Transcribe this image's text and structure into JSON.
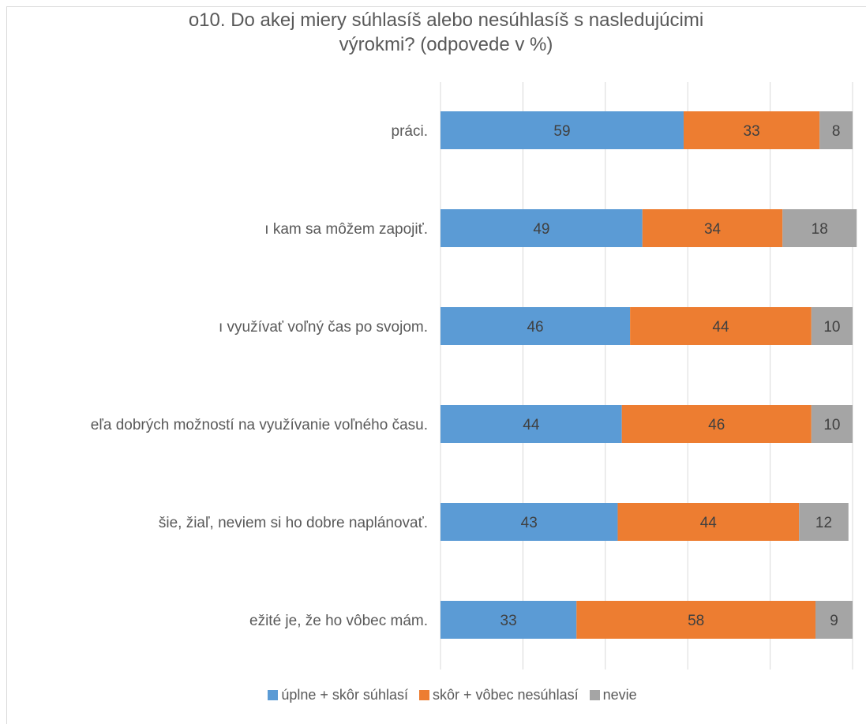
{
  "chart_data": {
    "type": "bar",
    "orientation": "horizontal",
    "stacked": true,
    "title_line1": "o10. Do akej miery súhlasíš alebo nesúhlasíš s nasledujúcimi",
    "title_line2": "výrokmi? (odpovede v %)",
    "categories": [
      "práci.",
      "ı kam sa môžem zapojiť.",
      "ı využívať voľný čas po svojom.",
      "eľa dobrých možností na využívanie voľného času.",
      "šie, žiaľ, neviem si ho dobre naplánovať.",
      "ežité je, že ho vôbec mám."
    ],
    "series": [
      {
        "name": "úplne + skôr súhlasí",
        "color": "#5b9bd5",
        "values": [
          59,
          49,
          46,
          44,
          43,
          33
        ]
      },
      {
        "name": "skôr + vôbec nesúhlasí",
        "color": "#ed7d31",
        "values": [
          33,
          34,
          44,
          46,
          44,
          58
        ]
      },
      {
        "name": "nevie",
        "color": "#a5a5a5",
        "values": [
          8,
          18,
          10,
          10,
          12,
          9
        ]
      }
    ],
    "xlim": [
      0,
      100
    ],
    "grid": true,
    "legend_position": "bottom"
  }
}
